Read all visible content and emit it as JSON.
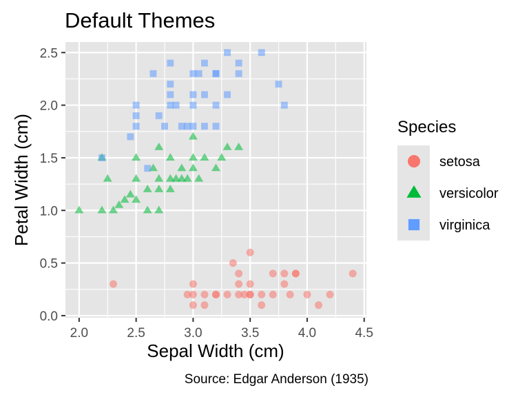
{
  "chart_data": {
    "type": "scatter",
    "title": "Default Themes",
    "xlabel": "Sepal Width (cm)",
    "ylabel": "Petal Width (cm)",
    "caption": "Source: Edgar Anderson (1935)",
    "xlim": [
      1.88,
      4.52
    ],
    "ylim": [
      -0.02,
      2.6
    ],
    "xticks": [
      "2.0",
      "2.5",
      "3.0",
      "3.5",
      "4.0",
      "4.5"
    ],
    "yticks": [
      "0.0",
      "0.5",
      "1.0",
      "1.5",
      "2.0",
      "2.5"
    ],
    "grid": true,
    "panel_background": "#E5E5E5",
    "grid_color": "#FFFFFF",
    "legend": {
      "title": "Species",
      "position": "right",
      "background": "#E5E5E5"
    },
    "series": [
      {
        "name": "setosa",
        "shape": "circle",
        "color": "#F8766D",
        "points": [
          [
            2.3,
            0.3
          ],
          [
            2.95,
            0.2
          ],
          [
            3.0,
            0.3
          ],
          [
            3.0,
            0.1
          ],
          [
            3.0,
            0.2
          ],
          [
            3.1,
            0.2
          ],
          [
            3.1,
            0.1
          ],
          [
            3.2,
            0.2
          ],
          [
            3.2,
            0.2
          ],
          [
            3.3,
            0.2
          ],
          [
            3.35,
            0.5
          ],
          [
            3.4,
            0.2
          ],
          [
            3.4,
            0.4
          ],
          [
            3.4,
            0.3
          ],
          [
            3.45,
            0.2
          ],
          [
            3.5,
            0.6
          ],
          [
            3.5,
            0.2
          ],
          [
            3.5,
            0.3
          ],
          [
            3.5,
            0.2
          ],
          [
            3.6,
            0.2
          ],
          [
            3.6,
            0.1
          ],
          [
            3.7,
            0.4
          ],
          [
            3.7,
            0.2
          ],
          [
            3.8,
            0.3
          ],
          [
            3.8,
            0.4
          ],
          [
            3.85,
            0.2
          ],
          [
            3.9,
            0.4
          ],
          [
            3.9,
            0.4
          ],
          [
            4.0,
            0.2
          ],
          [
            4.1,
            0.1
          ],
          [
            4.2,
            0.2
          ],
          [
            4.4,
            0.4
          ]
        ]
      },
      {
        "name": "versicolor",
        "shape": "triangle",
        "color": "#00BA38",
        "points": [
          [
            2.0,
            1.0
          ],
          [
            2.2,
            1.0
          ],
          [
            2.2,
            1.5
          ],
          [
            2.25,
            1.3
          ],
          [
            2.3,
            1.0
          ],
          [
            2.35,
            1.05
          ],
          [
            2.4,
            1.1
          ],
          [
            2.45,
            1.15
          ],
          [
            2.5,
            1.1
          ],
          [
            2.5,
            1.3
          ],
          [
            2.5,
            1.5
          ],
          [
            2.6,
            1.0
          ],
          [
            2.6,
            1.2
          ],
          [
            2.65,
            1.4
          ],
          [
            2.7,
            1.0
          ],
          [
            2.7,
            1.2
          ],
          [
            2.7,
            1.3
          ],
          [
            2.7,
            1.6
          ],
          [
            2.8,
            1.3
          ],
          [
            2.8,
            1.5
          ],
          [
            2.8,
            1.2
          ],
          [
            2.85,
            1.3
          ],
          [
            2.9,
            1.3
          ],
          [
            2.9,
            1.4
          ],
          [
            2.95,
            1.3
          ],
          [
            3.0,
            1.4
          ],
          [
            3.0,
            1.5
          ],
          [
            3.0,
            1.7
          ],
          [
            3.05,
            1.3
          ],
          [
            3.1,
            1.5
          ],
          [
            3.2,
            1.4
          ],
          [
            3.25,
            1.5
          ],
          [
            3.3,
            1.6
          ],
          [
            3.4,
            1.6
          ]
        ]
      },
      {
        "name": "virginica",
        "shape": "square",
        "color": "#619CFF",
        "points": [
          [
            2.2,
            1.5
          ],
          [
            2.45,
            1.7
          ],
          [
            2.5,
            1.8
          ],
          [
            2.5,
            2.0
          ],
          [
            2.5,
            1.9
          ],
          [
            2.6,
            1.4
          ],
          [
            2.65,
            2.3
          ],
          [
            2.7,
            1.9
          ],
          [
            2.75,
            1.8
          ],
          [
            2.8,
            2.0
          ],
          [
            2.8,
            2.1
          ],
          [
            2.8,
            2.2
          ],
          [
            2.8,
            2.4
          ],
          [
            2.85,
            2.0
          ],
          [
            2.9,
            1.8
          ],
          [
            2.95,
            1.8
          ],
          [
            3.0,
            1.8
          ],
          [
            3.0,
            2.1
          ],
          [
            3.0,
            2.3
          ],
          [
            3.0,
            2.0
          ],
          [
            3.05,
            2.3
          ],
          [
            3.1,
            2.1
          ],
          [
            3.1,
            1.8
          ],
          [
            3.1,
            2.4
          ],
          [
            3.2,
            2.3
          ],
          [
            3.2,
            2.3
          ],
          [
            3.2,
            2.0
          ],
          [
            3.2,
            1.8
          ],
          [
            3.3,
            2.5
          ],
          [
            3.3,
            2.1
          ],
          [
            3.4,
            2.4
          ],
          [
            3.4,
            2.3
          ],
          [
            3.6,
            2.5
          ],
          [
            3.75,
            2.2
          ],
          [
            3.8,
            2.0
          ]
        ]
      }
    ]
  }
}
